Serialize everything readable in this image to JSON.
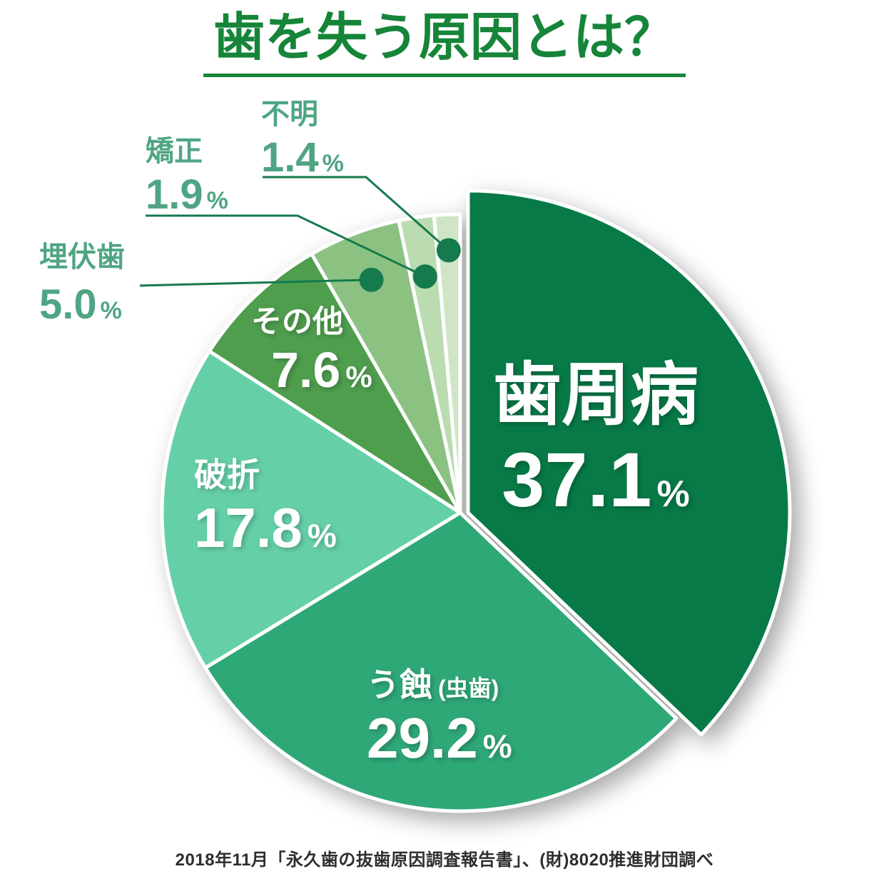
{
  "title": {
    "text": "歯を失う原因とは？"
  },
  "caption": {
    "text": "2018年11月「永久歯の抜歯原因調査報告書」、(財)8020推進財団調べ"
  },
  "colors": {
    "title": "#168539",
    "label": "#4FA583",
    "leader": "#157A4D",
    "caption": "#2E2E2E",
    "slice_text": "#FFFFFF",
    "background": "#FFFFFF"
  },
  "chart_data": {
    "type": "pie",
    "title": "歯を失う原因とは？",
    "unit": "%",
    "direction": "clockwise",
    "start_angle_deg": 0,
    "categories": [
      "歯周病",
      "う蝕(虫歯)",
      "破折",
      "その他",
      "埋伏歯",
      "矯正",
      "不明"
    ],
    "values": [
      37.1,
      29.2,
      17.8,
      7.6,
      5.0,
      1.9,
      1.4
    ],
    "colors": [
      "#077A47",
      "#2FA878",
      "#65D0A8",
      "#4F9E4E",
      "#8BC282",
      "#BADCB0",
      "#D0E5C6"
    ],
    "exploded_slice": "歯周病",
    "legend": "none",
    "source_note": "2018年11月「永久歯の抜歯原因調査報告書」、(財)8020推進財団調べ"
  },
  "slices": {
    "periodontal": {
      "name": "歯周病",
      "value": "37.1",
      "unit": "%"
    },
    "caries": {
      "name": "う蝕",
      "name_suffix": "(虫歯)",
      "value": "29.2",
      "unit": "%"
    },
    "fracture": {
      "name": "破折",
      "value": "17.8",
      "unit": "%"
    },
    "other": {
      "name": "その他",
      "value": "7.6",
      "unit": "%"
    },
    "impacted": {
      "name": "埋伏歯",
      "value": "5.0",
      "unit": "%"
    },
    "ortho": {
      "name": "矯正",
      "value": "1.9",
      "unit": "%"
    },
    "unknown": {
      "name": "不明",
      "value": "1.4",
      "unit": "%"
    }
  }
}
